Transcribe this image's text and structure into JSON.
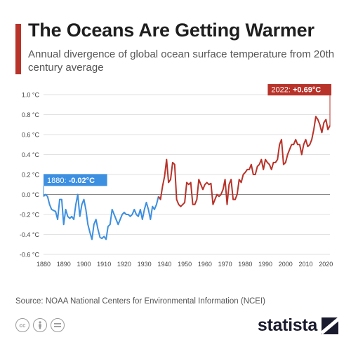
{
  "title": "The Oceans Are Getting Warmer",
  "subtitle": "Annual divergence of global ocean surface temperature from 20th century average",
  "source": "Source: NOAA National Centers for Environmental Information (NCEI)",
  "brand": "statista",
  "colors": {
    "accent": "#b8332a",
    "early": "#3d8fe0",
    "late": "#b8332a"
  },
  "icons": [
    "cc-icon",
    "person-icon",
    "equals-icon",
    "statista-logo-icon"
  ],
  "chart_data": {
    "type": "line",
    "title": "The Oceans Are Getting Warmer",
    "subtitle": "Annual divergence of global ocean surface temperature from 20th century average",
    "xlabel": "",
    "ylabel": "",
    "ylim": [
      -0.6,
      1.0
    ],
    "xlim": [
      1880,
      2022
    ],
    "grid": true,
    "y_ticks": [
      {
        "v": 1.0,
        "label": "1.0 °C"
      },
      {
        "v": 0.8,
        "label": "0.8 °C"
      },
      {
        "v": 0.6,
        "label": "0.6 °C"
      },
      {
        "v": 0.4,
        "label": "0.4 °C"
      },
      {
        "v": 0.2,
        "label": "0.2 °C"
      },
      {
        "v": 0.0,
        "label": "0.0 °C"
      },
      {
        "v": -0.2,
        "label": "-0.2 °C"
      },
      {
        "v": -0.4,
        "label": "-0.4 °C"
      },
      {
        "v": -0.6,
        "label": "-0.6 °C"
      }
    ],
    "x_ticks": [
      1880,
      1890,
      1900,
      1910,
      1920,
      1930,
      1940,
      1950,
      1960,
      1970,
      1980,
      1990,
      2000,
      2010,
      2020
    ],
    "color_split_year": 1937,
    "annotations": [
      {
        "year": 1880,
        "value": -0.02,
        "label": "1880:",
        "value_label": "-0.02°C",
        "color": "#3d8fe0"
      },
      {
        "year": 2022,
        "value": 0.69,
        "label": "2022:",
        "value_label": "+0.69°C",
        "color": "#b8332a"
      }
    ],
    "series": [
      {
        "x": [
          1880,
          1881,
          1882,
          1883,
          1884,
          1885,
          1886,
          1887,
          1888,
          1889,
          1890,
          1891,
          1892,
          1893,
          1894,
          1895,
          1896,
          1897,
          1898,
          1899,
          1900,
          1901,
          1902,
          1903,
          1904,
          1905,
          1906,
          1907,
          1908,
          1909,
          1910,
          1911,
          1912,
          1913,
          1914,
          1915,
          1916,
          1917,
          1918,
          1919,
          1920,
          1921,
          1922,
          1923,
          1924,
          1925,
          1926,
          1927,
          1928,
          1929,
          1930,
          1931,
          1932,
          1933,
          1934,
          1935,
          1936,
          1937,
          1938,
          1939,
          1940,
          1941,
          1942,
          1943,
          1944,
          1945,
          1946,
          1947,
          1948,
          1949,
          1950,
          1951,
          1952,
          1953,
          1954,
          1955,
          1956,
          1957,
          1958,
          1959,
          1960,
          1961,
          1962,
          1963,
          1964,
          1965,
          1966,
          1967,
          1968,
          1969,
          1970,
          1971,
          1972,
          1973,
          1974,
          1975,
          1976,
          1977,
          1978,
          1979,
          1980,
          1981,
          1982,
          1983,
          1984,
          1985,
          1986,
          1987,
          1988,
          1989,
          1990,
          1991,
          1992,
          1993,
          1994,
          1995,
          1996,
          1997,
          1998,
          1999,
          2000,
          2001,
          2002,
          2003,
          2004,
          2005,
          2006,
          2007,
          2008,
          2009,
          2010,
          2011,
          2012,
          2013,
          2014,
          2015,
          2016,
          2017,
          2018,
          2019,
          2020,
          2021,
          2022
        ],
        "values": [
          -0.02,
          0.0,
          -0.02,
          -0.1,
          -0.15,
          -0.16,
          -0.17,
          -0.25,
          -0.05,
          -0.05,
          -0.3,
          -0.15,
          -0.22,
          -0.24,
          -0.22,
          -0.25,
          -0.1,
          0.0,
          -0.22,
          -0.1,
          -0.05,
          -0.15,
          -0.3,
          -0.38,
          -0.45,
          -0.3,
          -0.25,
          -0.35,
          -0.43,
          -0.44,
          -0.42,
          -0.45,
          -0.32,
          -0.3,
          -0.15,
          -0.2,
          -0.25,
          -0.3,
          -0.25,
          -0.2,
          -0.18,
          -0.2,
          -0.2,
          -0.22,
          -0.2,
          -0.15,
          -0.2,
          -0.22,
          -0.15,
          -0.25,
          -0.15,
          -0.08,
          -0.15,
          -0.25,
          -0.12,
          -0.15,
          -0.1,
          -0.02,
          -0.05,
          0.08,
          0.18,
          0.35,
          0.12,
          0.15,
          0.32,
          0.3,
          -0.05,
          -0.1,
          -0.12,
          -0.1,
          -0.08,
          0.12,
          0.1,
          0.12,
          -0.1,
          -0.1,
          -0.05,
          0.15,
          0.1,
          0.05,
          0.1,
          0.12,
          0.1,
          0.11,
          -0.1,
          -0.05,
          0.0,
          -0.02,
          0.0,
          0.05,
          0.15,
          -0.1,
          0.1,
          0.15,
          -0.05,
          -0.05,
          0.0,
          0.15,
          0.12,
          0.2,
          0.22,
          0.25,
          0.25,
          0.3,
          0.2,
          0.2,
          0.28,
          0.3,
          0.35,
          0.25,
          0.35,
          0.32,
          0.3,
          0.25,
          0.32,
          0.32,
          0.35,
          0.5,
          0.55,
          0.3,
          0.32,
          0.4,
          0.45,
          0.5,
          0.5,
          0.55,
          0.5,
          0.5,
          0.4,
          0.5,
          0.55,
          0.48,
          0.5,
          0.55,
          0.65,
          0.78,
          0.75,
          0.7,
          0.62,
          0.72,
          0.75,
          0.65,
          0.69
        ]
      }
    ]
  }
}
